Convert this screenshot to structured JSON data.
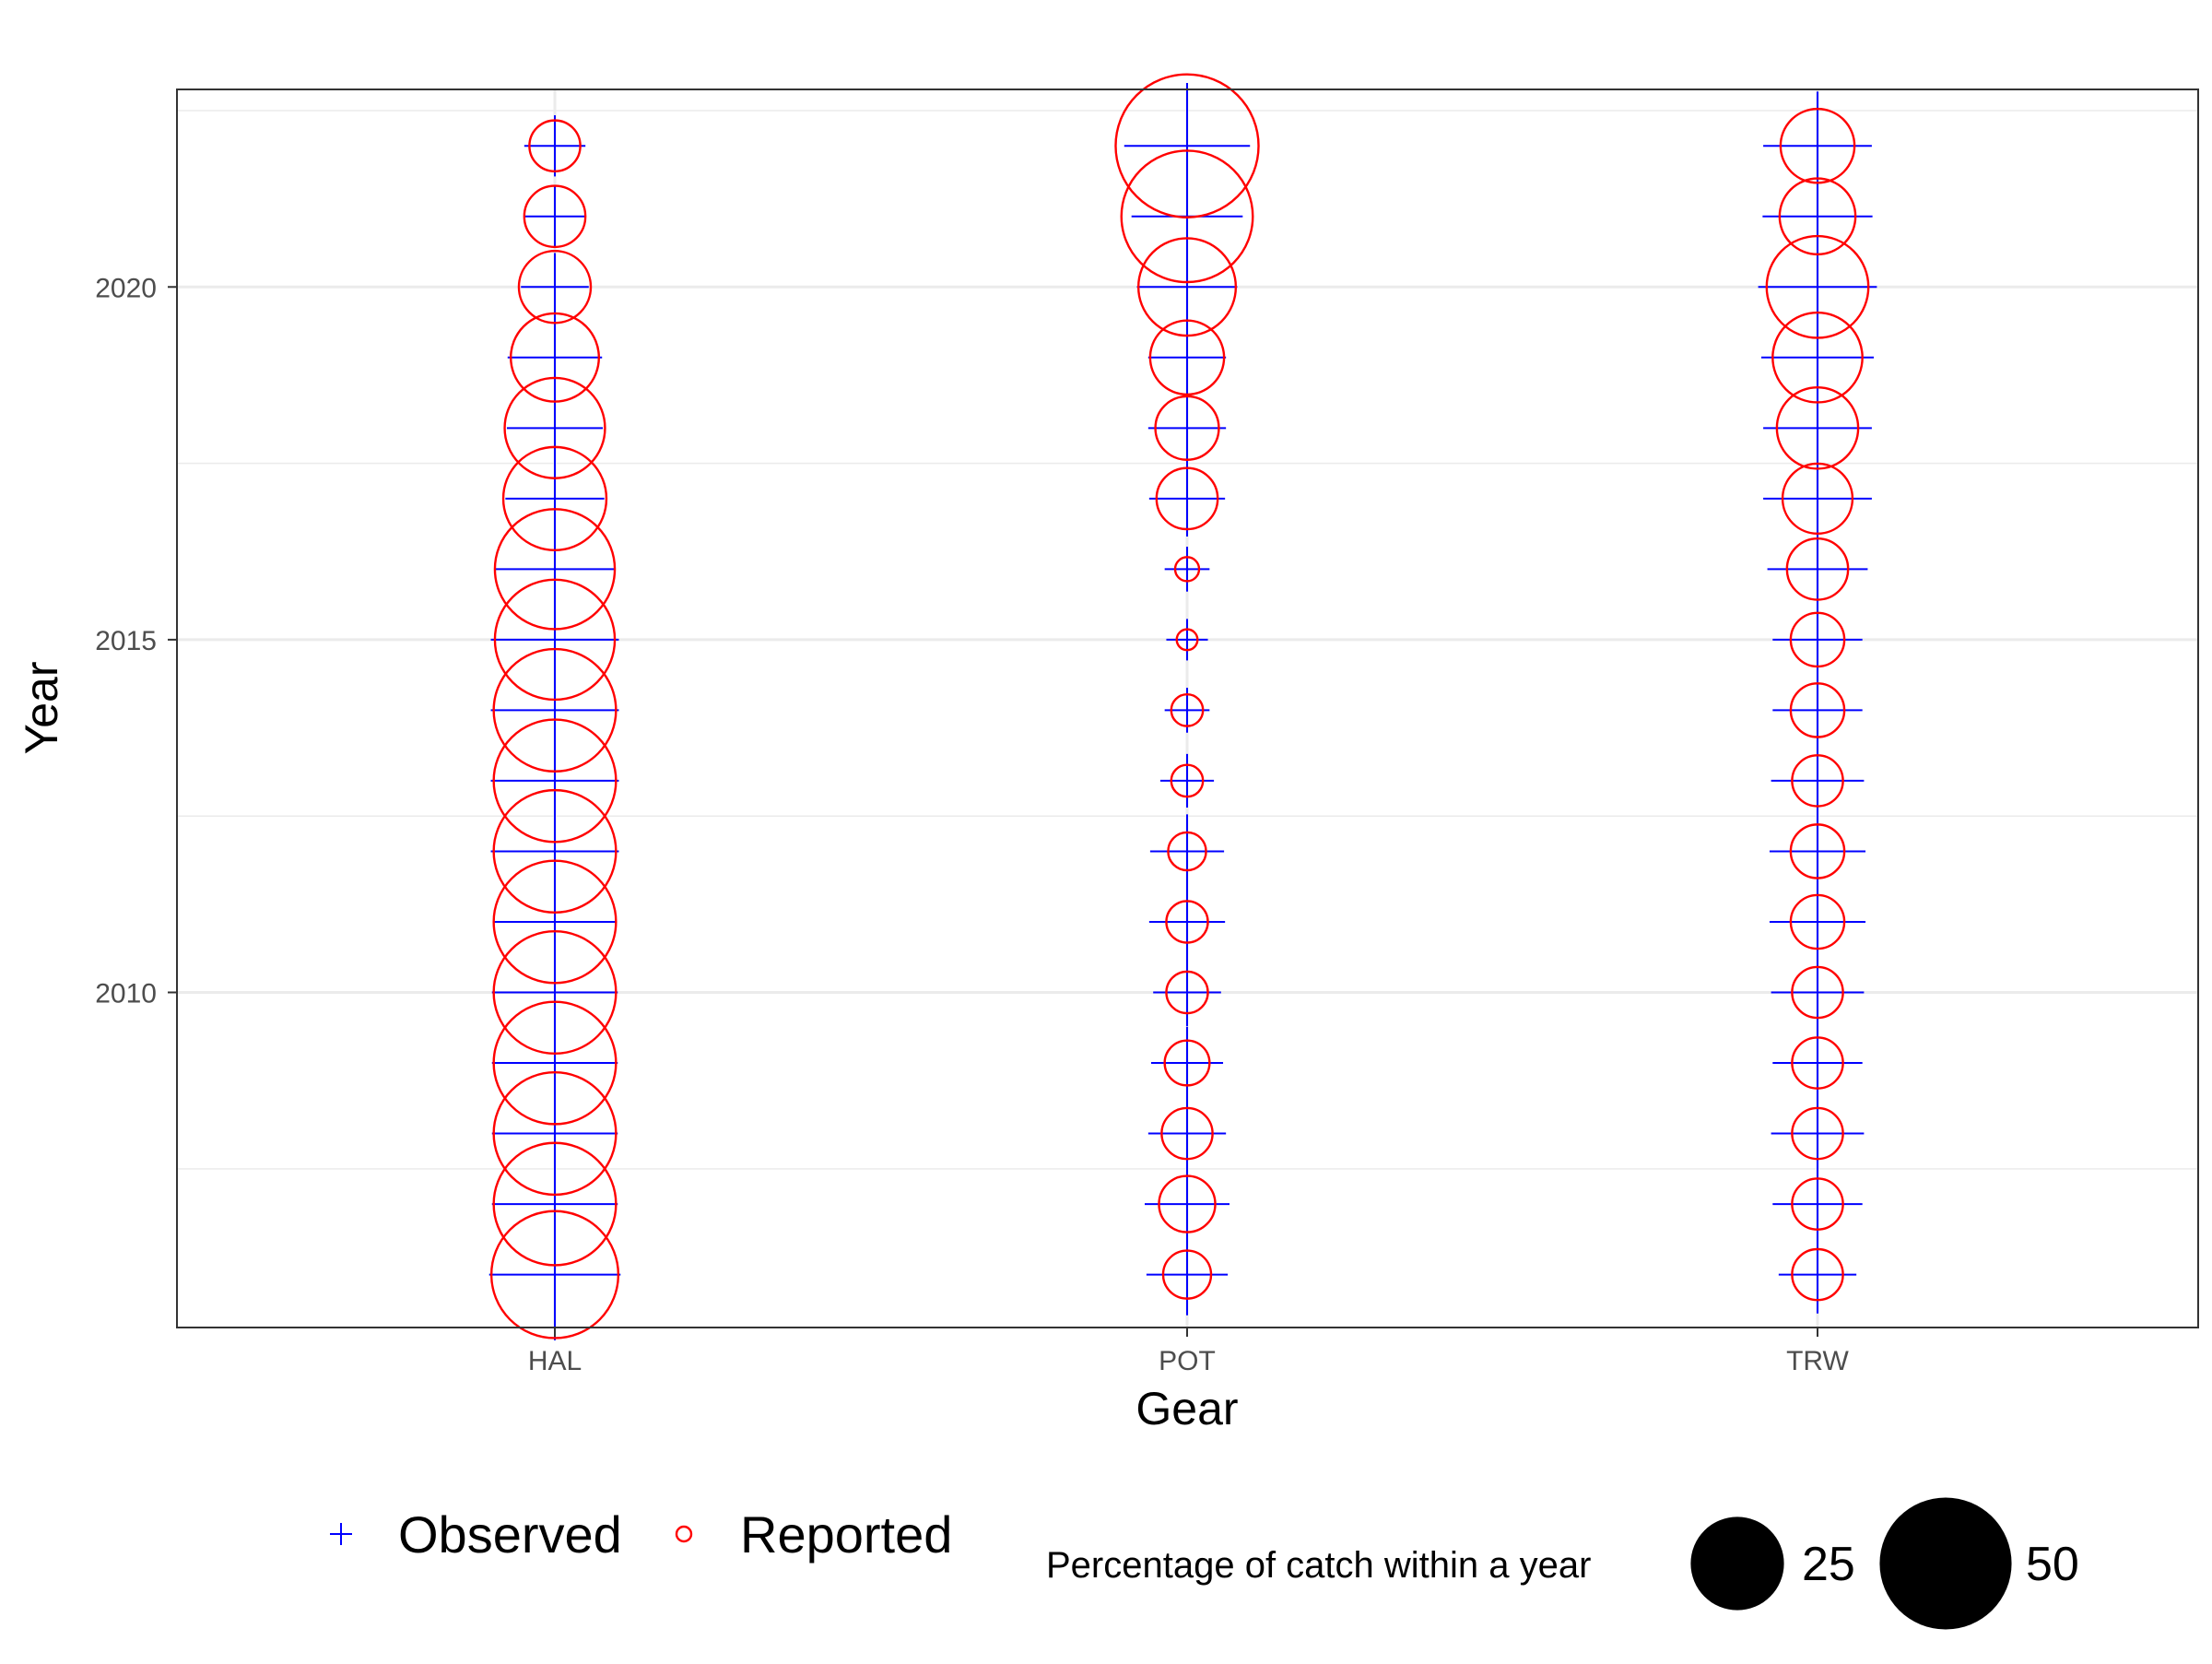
{
  "chart_data": {
    "type": "scatter",
    "xlabel": "Gear",
    "ylabel": "Year",
    "categories": [
      "HAL",
      "POT",
      "TRW"
    ],
    "ylim": [
      2005.25,
      2022.8
    ],
    "yticks": [
      2010,
      2015,
      2020
    ],
    "grid": true,
    "legend_position": "bottom",
    "series": [
      {
        "name": "Observed",
        "marker": "plus",
        "color": "#0000ff",
        "points": {
          "HAL": {
            "2006": 60,
            "2007": 55,
            "2008": 55,
            "2009": 55,
            "2010": 55,
            "2011": 52,
            "2012": 57,
            "2013": 57,
            "2014": 57,
            "2015": 57,
            "2016": 49,
            "2017": 34,
            "2018": 32,
            "2019": 31,
            "2020": 16,
            "2021": 13,
            "2022": 13
          },
          "POT": {
            "2006": 23,
            "2007": 25,
            "2008": 21,
            "2009": 18,
            "2010": 16,
            "2011": 20,
            "2012": 19,
            "2013": 10,
            "2014": 7,
            "2015": 6,
            "2016": 7,
            "2017": 20,
            "2018": 21,
            "2019": 21,
            "2020": 35,
            "2021": 43,
            "2022": 55
          },
          "TRW": {
            "2006": 21,
            "2007": 28,
            "2008": 30,
            "2009": 28,
            "2010": 30,
            "2011": 32,
            "2012": 32,
            "2013": 30,
            "2014": 28,
            "2015": 28,
            "2016": 35,
            "2017": 41,
            "2018": 41,
            "2019": 44,
            "2020": 49,
            "2021": 42,
            "2022": 41
          }
        }
      },
      {
        "name": "Reported",
        "marker": "circle",
        "color": "#ff0000",
        "points": {
          "HAL": {
            "2006": 56,
            "2007": 52,
            "2008": 52,
            "2009": 52,
            "2010": 52,
            "2011": 52,
            "2012": 52,
            "2013": 52,
            "2014": 52,
            "2015": 50,
            "2016": 50,
            "2017": 37,
            "2018": 35,
            "2019": 27,
            "2020": 18,
            "2021": 13,
            "2022": 9
          },
          "POT": {
            "2006": 8,
            "2007": 11,
            "2008": 9,
            "2009": 7,
            "2010": 6,
            "2011": 6,
            "2012": 5,
            "2013": 3.5,
            "2014": 3.5,
            "2015": 1.5,
            "2016": 2,
            "2017": 13,
            "2018": 14,
            "2019": 19,
            "2020": 33,
            "2021": 60,
            "2022": 71
          },
          "TRW": {
            "2006": 9,
            "2007": 9,
            "2008": 9,
            "2009": 9,
            "2010": 9,
            "2011": 10,
            "2012": 10,
            "2013": 9,
            "2014": 10,
            "2015": 10,
            "2016": 13,
            "2017": 17,
            "2018": 23,
            "2019": 28,
            "2020": 36,
            "2021": 20,
            "2022": 19
          }
        }
      }
    ],
    "size_legend": {
      "title": "Percentage of catch within a year",
      "values": [
        25,
        50
      ]
    }
  }
}
